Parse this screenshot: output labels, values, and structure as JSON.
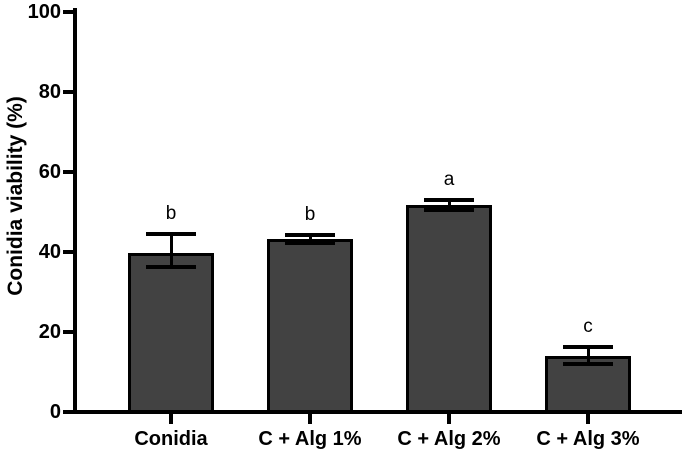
{
  "chart_data": {
    "type": "bar",
    "title": "",
    "xlabel": "",
    "ylabel": "Conidia viability (%)",
    "ylim": [
      0,
      100
    ],
    "yticks": [
      0,
      20,
      40,
      60,
      80,
      100
    ],
    "categories": [
      "Conidia",
      "C + Alg 1%",
      "C + Alg 2%",
      "C + Alg 3%"
    ],
    "series": [
      {
        "name": "Conidia viability (%)",
        "values": [
          39.8,
          43.3,
          51.8,
          14.0
        ],
        "error_low": [
          36.3,
          42.3,
          50.5,
          12.0
        ],
        "error_high": [
          44.5,
          44.3,
          53.0,
          16.3
        ]
      }
    ],
    "significance_letters": [
      "b",
      "b",
      "a",
      "c"
    ],
    "grid": false,
    "legend": null,
    "bar_fill_color": "#424242",
    "bar_border_color": "#000000",
    "axis_color": "#000000",
    "background_color": "#ffffff"
  }
}
